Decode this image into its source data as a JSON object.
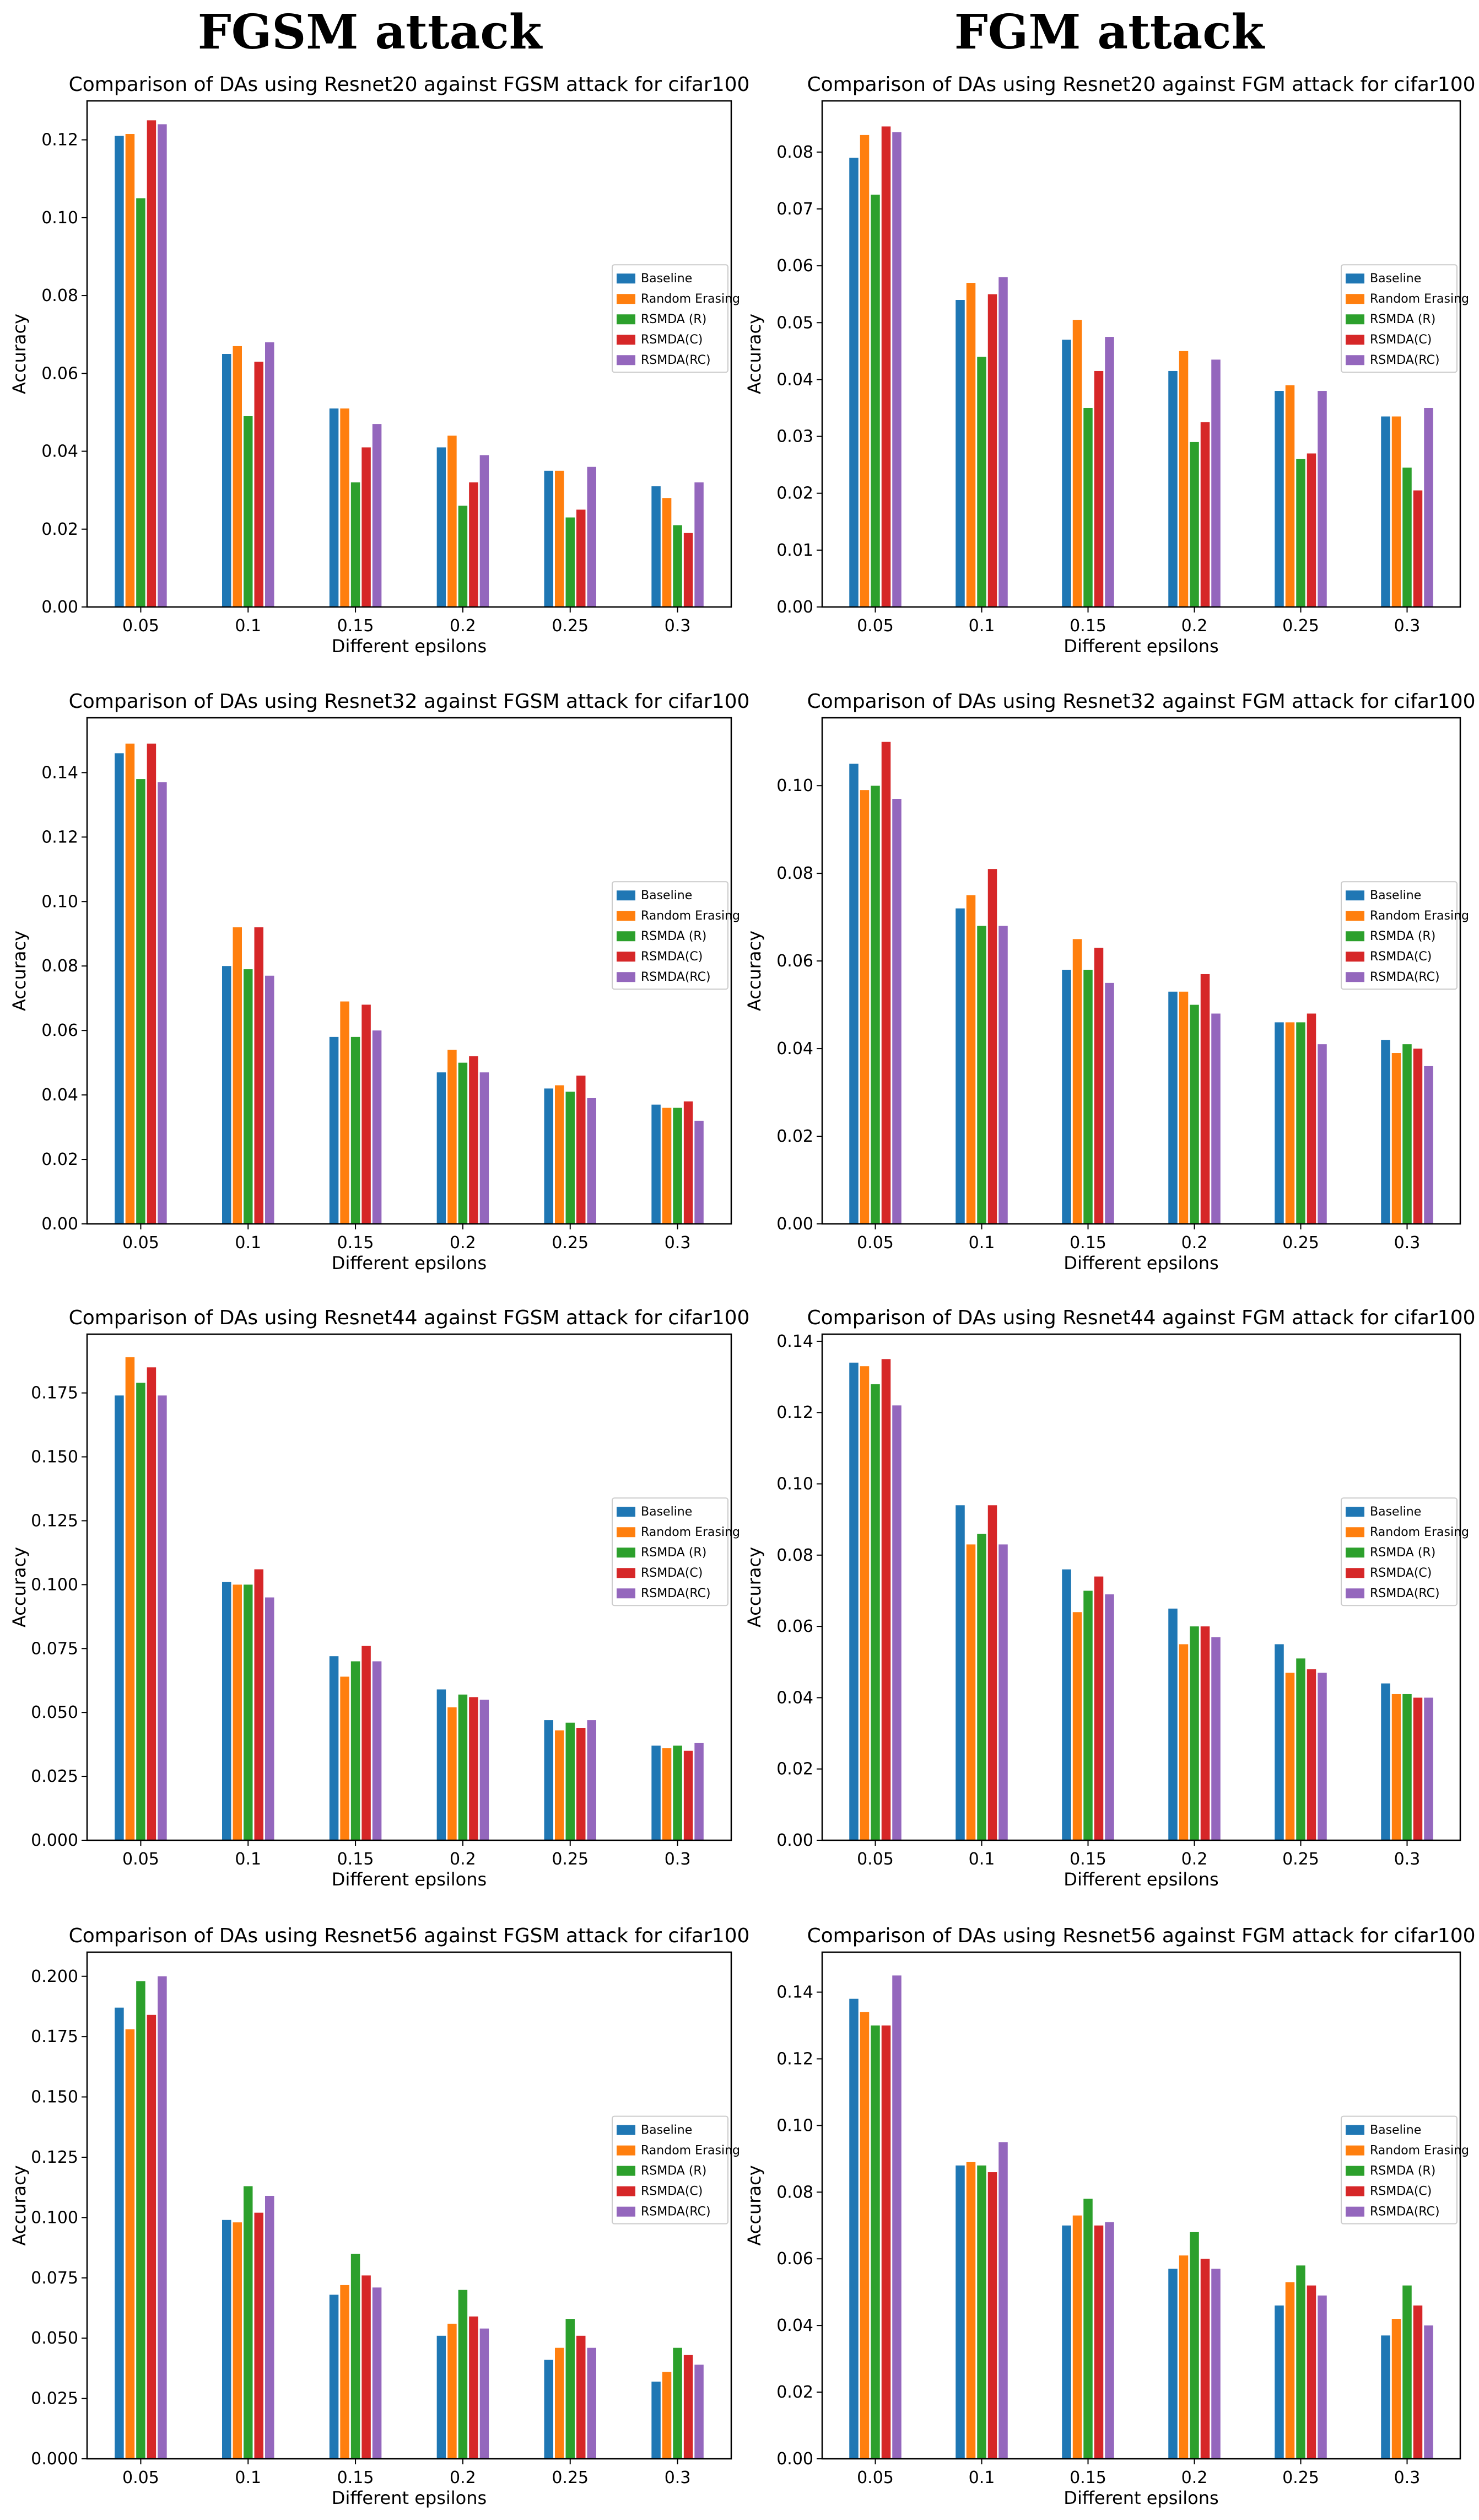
{
  "headings": {
    "left": "FGSM attack",
    "right": "FGM attack"
  },
  "colors": {
    "series": [
      "#1f77b4",
      "#ff7f0e",
      "#2ca02c",
      "#d62728",
      "#9467bd"
    ]
  },
  "chart_data": [
    {
      "type": "bar",
      "title": "Comparison of DAs using Resnet20 against FGSM attack for cifar100",
      "xlabel": "Different epsilons",
      "ylabel": "Accuracy",
      "categories": [
        "0.05",
        "0.1",
        "0.15",
        "0.2",
        "0.25",
        "0.3"
      ],
      "ylim": [
        0,
        0.13
      ],
      "yticks": [
        "0.00",
        "0.02",
        "0.04",
        "0.06",
        "0.08",
        "0.10",
        "0.12"
      ],
      "ytick_values": [
        0,
        0.02,
        0.04,
        0.06,
        0.08,
        0.1,
        0.12
      ],
      "legend": "center-right",
      "series": [
        {
          "name": "Baseline",
          "values": [
            0.121,
            0.065,
            0.051,
            0.041,
            0.035,
            0.031
          ]
        },
        {
          "name": "Random Erasing",
          "values": [
            0.1215,
            0.067,
            0.051,
            0.044,
            0.035,
            0.028
          ]
        },
        {
          "name": "RSMDA (R)",
          "values": [
            0.105,
            0.049,
            0.032,
            0.026,
            0.023,
            0.021
          ]
        },
        {
          "name": "RSMDA(C)",
          "values": [
            0.125,
            0.063,
            0.041,
            0.032,
            0.025,
            0.019
          ]
        },
        {
          "name": "RSMDA(RC)",
          "values": [
            0.124,
            0.068,
            0.047,
            0.039,
            0.036,
            0.032
          ]
        }
      ]
    },
    {
      "type": "bar",
      "title": "Comparison of DAs using Resnet20 against FGM attack for cifar100",
      "xlabel": "Different epsilons",
      "ylabel": "Accuracy",
      "categories": [
        "0.05",
        "0.1",
        "0.15",
        "0.2",
        "0.25",
        "0.3"
      ],
      "ylim": [
        0,
        0.089
      ],
      "yticks": [
        "0.00",
        "0.01",
        "0.02",
        "0.03",
        "0.04",
        "0.05",
        "0.06",
        "0.07",
        "0.08"
      ],
      "ytick_values": [
        0,
        0.01,
        0.02,
        0.03,
        0.04,
        0.05,
        0.06,
        0.07,
        0.08
      ],
      "legend": "center-right",
      "series": [
        {
          "name": "Baseline",
          "values": [
            0.079,
            0.054,
            0.047,
            0.0415,
            0.038,
            0.0335
          ]
        },
        {
          "name": "Random Erasing",
          "values": [
            0.083,
            0.057,
            0.0505,
            0.045,
            0.039,
            0.0335
          ]
        },
        {
          "name": "RSMDA (R)",
          "values": [
            0.0725,
            0.044,
            0.035,
            0.029,
            0.026,
            0.0245
          ]
        },
        {
          "name": "RSMDA(C)",
          "values": [
            0.0845,
            0.055,
            0.0415,
            0.0325,
            0.027,
            0.0205
          ]
        },
        {
          "name": "RSMDA(RC)",
          "values": [
            0.0835,
            0.058,
            0.0475,
            0.0435,
            0.038,
            0.035
          ]
        }
      ]
    },
    {
      "type": "bar",
      "title": "Comparison of DAs using Resnet32 against FGSM attack for cifar100",
      "xlabel": "Different epsilons",
      "ylabel": "Accuracy",
      "categories": [
        "0.05",
        "0.1",
        "0.15",
        "0.2",
        "0.25",
        "0.3"
      ],
      "ylim": [
        0,
        0.157
      ],
      "yticks": [
        "0.00",
        "0.02",
        "0.04",
        "0.06",
        "0.08",
        "0.10",
        "0.12",
        "0.14"
      ],
      "ytick_values": [
        0,
        0.02,
        0.04,
        0.06,
        0.08,
        0.1,
        0.12,
        0.14
      ],
      "legend": "center-right",
      "series": [
        {
          "name": "Baseline",
          "values": [
            0.146,
            0.08,
            0.058,
            0.047,
            0.042,
            0.037
          ]
        },
        {
          "name": "Random Erasing",
          "values": [
            0.149,
            0.092,
            0.069,
            0.054,
            0.043,
            0.036
          ]
        },
        {
          "name": "RSMDA (R)",
          "values": [
            0.138,
            0.079,
            0.058,
            0.05,
            0.041,
            0.036
          ]
        },
        {
          "name": "RSMDA(C)",
          "values": [
            0.149,
            0.092,
            0.068,
            0.052,
            0.046,
            0.038
          ]
        },
        {
          "name": "RSMDA(RC)",
          "values": [
            0.137,
            0.077,
            0.06,
            0.047,
            0.039,
            0.032
          ]
        }
      ]
    },
    {
      "type": "bar",
      "title": "Comparison of DAs using Resnet32 against FGM attack for cifar100",
      "xlabel": "Different epsilons",
      "ylabel": "Accuracy",
      "categories": [
        "0.05",
        "0.1",
        "0.15",
        "0.2",
        "0.25",
        "0.3"
      ],
      "ylim": [
        0,
        0.1155
      ],
      "yticks": [
        "0.00",
        "0.02",
        "0.04",
        "0.06",
        "0.08",
        "0.10"
      ],
      "ytick_values": [
        0,
        0.02,
        0.04,
        0.06,
        0.08,
        0.1
      ],
      "legend": "center-right",
      "series": [
        {
          "name": "Baseline",
          "values": [
            0.105,
            0.072,
            0.058,
            0.053,
            0.046,
            0.042
          ]
        },
        {
          "name": "Random Erasing",
          "values": [
            0.099,
            0.075,
            0.065,
            0.053,
            0.046,
            0.039
          ]
        },
        {
          "name": "RSMDA (R)",
          "values": [
            0.1,
            0.068,
            0.058,
            0.05,
            0.046,
            0.041
          ]
        },
        {
          "name": "RSMDA(C)",
          "values": [
            0.11,
            0.081,
            0.063,
            0.057,
            0.048,
            0.04
          ]
        },
        {
          "name": "RSMDA(RC)",
          "values": [
            0.097,
            0.068,
            0.055,
            0.048,
            0.041,
            0.036
          ]
        }
      ]
    },
    {
      "type": "bar",
      "title": "Comparison of DAs using Resnet44 against FGSM attack for cifar100",
      "xlabel": "Different epsilons",
      "ylabel": "Accuracy",
      "categories": [
        "0.05",
        "0.1",
        "0.15",
        "0.2",
        "0.25",
        "0.3"
      ],
      "ylim": [
        0,
        0.198
      ],
      "yticks": [
        "0.000",
        "0.025",
        "0.050",
        "0.075",
        "0.100",
        "0.125",
        "0.150",
        "0.175"
      ],
      "ytick_values": [
        0,
        0.025,
        0.05,
        0.075,
        0.1,
        0.125,
        0.15,
        0.175
      ],
      "legend": "center-right",
      "series": [
        {
          "name": "Baseline",
          "values": [
            0.174,
            0.101,
            0.072,
            0.059,
            0.047,
            0.037
          ]
        },
        {
          "name": "Random Erasing",
          "values": [
            0.189,
            0.1,
            0.064,
            0.052,
            0.043,
            0.036
          ]
        },
        {
          "name": "RSMDA (R)",
          "values": [
            0.179,
            0.1,
            0.07,
            0.057,
            0.046,
            0.037
          ]
        },
        {
          "name": "RSMDA(C)",
          "values": [
            0.185,
            0.106,
            0.076,
            0.056,
            0.044,
            0.035
          ]
        },
        {
          "name": "RSMDA(RC)",
          "values": [
            0.174,
            0.095,
            0.07,
            0.055,
            0.047,
            0.038
          ]
        }
      ]
    },
    {
      "type": "bar",
      "title": "Comparison of DAs using Resnet44 against FGM attack for cifar100",
      "xlabel": "Different epsilons",
      "ylabel": "Accuracy",
      "categories": [
        "0.05",
        "0.1",
        "0.15",
        "0.2",
        "0.25",
        "0.3"
      ],
      "ylim": [
        0,
        0.142
      ],
      "yticks": [
        "0.00",
        "0.02",
        "0.04",
        "0.06",
        "0.08",
        "0.10",
        "0.12",
        "0.14"
      ],
      "ytick_values": [
        0,
        0.02,
        0.04,
        0.06,
        0.08,
        0.1,
        0.12,
        0.14
      ],
      "legend": "center-right",
      "series": [
        {
          "name": "Baseline",
          "values": [
            0.134,
            0.094,
            0.076,
            0.065,
            0.055,
            0.044
          ]
        },
        {
          "name": "Random Erasing",
          "values": [
            0.133,
            0.083,
            0.064,
            0.055,
            0.047,
            0.041
          ]
        },
        {
          "name": "RSMDA (R)",
          "values": [
            0.128,
            0.086,
            0.07,
            0.06,
            0.051,
            0.041
          ]
        },
        {
          "name": "RSMDA(C)",
          "values": [
            0.135,
            0.094,
            0.074,
            0.06,
            0.048,
            0.04
          ]
        },
        {
          "name": "RSMDA(RC)",
          "values": [
            0.122,
            0.083,
            0.069,
            0.057,
            0.047,
            0.04
          ]
        }
      ]
    },
    {
      "type": "bar",
      "title": "Comparison of DAs using Resnet56 against FGSM attack for cifar100",
      "xlabel": "Different epsilons",
      "ylabel": "Accuracy",
      "categories": [
        "0.05",
        "0.1",
        "0.15",
        "0.2",
        "0.25",
        "0.3"
      ],
      "ylim": [
        0,
        0.21
      ],
      "yticks": [
        "0.000",
        "0.025",
        "0.050",
        "0.075",
        "0.100",
        "0.125",
        "0.150",
        "0.175",
        "0.200"
      ],
      "ytick_values": [
        0,
        0.025,
        0.05,
        0.075,
        0.1,
        0.125,
        0.15,
        0.175,
        0.2
      ],
      "legend": "center-right",
      "series": [
        {
          "name": "Baseline",
          "values": [
            0.187,
            0.099,
            0.068,
            0.051,
            0.041,
            0.032
          ]
        },
        {
          "name": "Random Erasing",
          "values": [
            0.178,
            0.098,
            0.072,
            0.056,
            0.046,
            0.036
          ]
        },
        {
          "name": "RSMDA (R)",
          "values": [
            0.198,
            0.113,
            0.085,
            0.07,
            0.058,
            0.046
          ]
        },
        {
          "name": "RSMDA(C)",
          "values": [
            0.184,
            0.102,
            0.076,
            0.059,
            0.051,
            0.043
          ]
        },
        {
          "name": "RSMDA(RC)",
          "values": [
            0.2,
            0.109,
            0.071,
            0.054,
            0.046,
            0.039
          ]
        }
      ]
    },
    {
      "type": "bar",
      "title": "Comparison of DAs using Resnet56 against FGM attack for cifar100",
      "xlabel": "Different epsilons",
      "ylabel": "Accuracy",
      "categories": [
        "0.05",
        "0.1",
        "0.15",
        "0.2",
        "0.25",
        "0.3"
      ],
      "ylim": [
        0,
        0.152
      ],
      "yticks": [
        "0.00",
        "0.02",
        "0.04",
        "0.06",
        "0.08",
        "0.10",
        "0.12",
        "0.14"
      ],
      "ytick_values": [
        0,
        0.02,
        0.04,
        0.06,
        0.08,
        0.1,
        0.12,
        0.14
      ],
      "legend": "center-right",
      "series": [
        {
          "name": "Baseline",
          "values": [
            0.138,
            0.088,
            0.07,
            0.057,
            0.046,
            0.037
          ]
        },
        {
          "name": "Random Erasing",
          "values": [
            0.134,
            0.089,
            0.073,
            0.061,
            0.053,
            0.042
          ]
        },
        {
          "name": "RSMDA (R)",
          "values": [
            0.13,
            0.088,
            0.078,
            0.068,
            0.058,
            0.052
          ]
        },
        {
          "name": "RSMDA(C)",
          "values": [
            0.13,
            0.086,
            0.07,
            0.06,
            0.052,
            0.046
          ]
        },
        {
          "name": "RSMDA(RC)",
          "values": [
            0.145,
            0.095,
            0.071,
            0.057,
            0.049,
            0.04
          ]
        }
      ]
    }
  ]
}
